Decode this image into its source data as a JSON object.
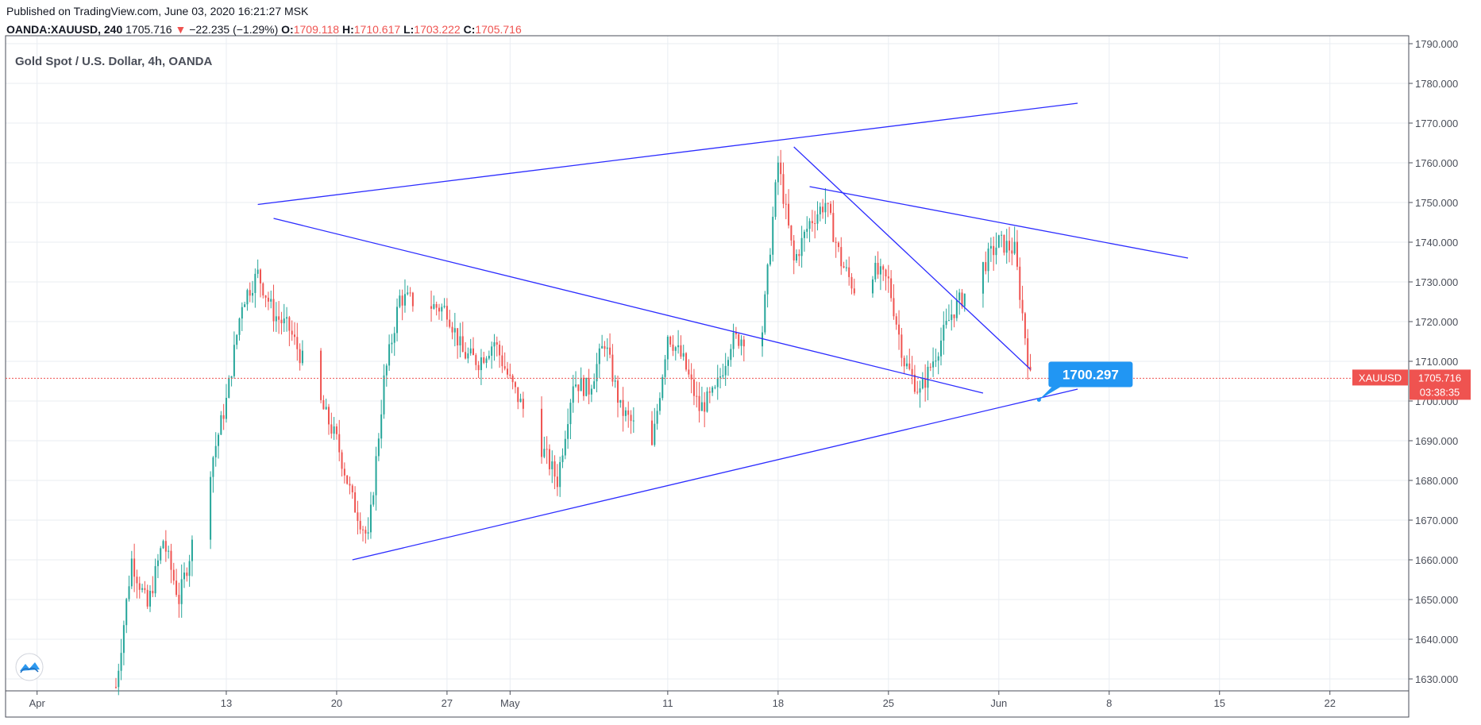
{
  "header": {
    "published": "Published on TradingView.com, June 03, 2020 16:21:27 MSK",
    "symbol": "OANDA:XAUUSD, 240",
    "last": "1705.716",
    "change_arrow": "▼",
    "change": "−22.235 (−1.29%)",
    "o_label": "O:",
    "o_value": "1709.118",
    "h_label": "H:",
    "h_value": "1710.617",
    "l_label": "L:",
    "l_value": "1703.222",
    "c_label": "C:",
    "c_value": "1705.716"
  },
  "colors": {
    "up": "#26a69a",
    "down": "#ef5350",
    "trendline": "#2c2cff",
    "callout": "#2196f3",
    "grid": "#e9edf2",
    "price_line": "#ef5350"
  },
  "logo_icon": "tradingview-cloud-icon",
  "chart_data": {
    "type": "candlestick",
    "title": "Gold Spot / U.S. Dollar, 4h, OANDA",
    "symbol_tag": "XAUUSD",
    "last_price": "1705.716",
    "last_price_value": 1705.716,
    "countdown": "03:38:35",
    "ylim": [
      1627,
      1792
    ],
    "y_ticks": [
      "1790.000",
      "1780.000",
      "1770.000",
      "1760.000",
      "1750.000",
      "1740.000",
      "1730.000",
      "1720.000",
      "1710.000",
      "1700.000",
      "1690.000",
      "1680.000",
      "1670.000",
      "1660.000",
      "1650.000",
      "1640.000",
      "1630.000"
    ],
    "x_ticks": [
      "Apr",
      "13",
      "20",
      "27",
      "May",
      "11",
      "18",
      "25",
      "Jun",
      "8",
      "15",
      "22"
    ],
    "xlim": [
      "2020-03-30",
      "2020-06-27"
    ],
    "x_tick_dates": [
      "2020-04-01",
      "2020-04-13",
      "2020-04-20",
      "2020-04-27",
      "2020-05-01",
      "2020-05-11",
      "2020-05-18",
      "2020-05-25",
      "2020-06-01",
      "2020-06-08",
      "2020-06-15",
      "2020-06-22"
    ],
    "price_path": [
      [
        "2020-04-06",
        1628
      ],
      [
        "2020-04-07",
        1660
      ],
      [
        "2020-04-08",
        1648
      ],
      [
        "2020-04-09",
        1665
      ],
      [
        "2020-04-10",
        1650
      ],
      [
        "2020-04-13",
        1700
      ],
      [
        "2020-04-14",
        1725
      ],
      [
        "2020-04-15",
        1732
      ],
      [
        "2020-04-16",
        1722
      ],
      [
        "2020-04-17",
        1718
      ],
      [
        "2020-04-20",
        1690
      ],
      [
        "2020-04-21",
        1675
      ],
      [
        "2020-04-22",
        1665
      ],
      [
        "2020-04-23",
        1705
      ],
      [
        "2020-04-24",
        1726
      ],
      [
        "2020-04-27",
        1723
      ],
      [
        "2020-04-28",
        1712
      ],
      [
        "2020-04-29",
        1710
      ],
      [
        "2020-04-30",
        1715
      ],
      [
        "2020-05-01",
        1705
      ],
      [
        "2020-05-04",
        1680
      ],
      [
        "2020-05-05",
        1705
      ],
      [
        "2020-05-06",
        1703
      ],
      [
        "2020-05-07",
        1715
      ],
      [
        "2020-05-08",
        1698
      ],
      [
        "2020-05-10",
        1688
      ],
      [
        "2020-05-11",
        1717
      ],
      [
        "2020-05-12",
        1710
      ],
      [
        "2020-05-13",
        1698
      ],
      [
        "2020-05-14",
        1702
      ],
      [
        "2020-05-15",
        1715
      ],
      [
        "2020-05-17",
        1718
      ],
      [
        "2020-05-18",
        1760
      ],
      [
        "2020-05-19",
        1735
      ],
      [
        "2020-05-20",
        1745
      ],
      [
        "2020-05-21",
        1750
      ],
      [
        "2020-05-22",
        1735
      ],
      [
        "2020-05-23",
        1727
      ],
      [
        "2020-05-24",
        1733
      ],
      [
        "2020-05-25",
        1730
      ],
      [
        "2020-05-26",
        1710
      ],
      [
        "2020-05-27",
        1702
      ],
      [
        "2020-05-28",
        1712
      ],
      [
        "2020-05-29",
        1722
      ],
      [
        "2020-05-30",
        1728
      ],
      [
        "2020-06-01",
        1740
      ],
      [
        "2020-06-02",
        1738
      ],
      [
        "2020-06-03",
        1705.7
      ]
    ],
    "trendlines": [
      {
        "name": "upper-channel",
        "from": [
          "2020-04-15",
          1749.5
        ],
        "to": [
          "2020-06-06",
          1775
        ]
      },
      {
        "name": "lower-channel",
        "from": [
          "2020-04-21",
          1660
        ],
        "to": [
          "2020-06-06",
          1703
        ]
      },
      {
        "name": "falling-resistance",
        "from": [
          "2020-04-16",
          1746
        ],
        "to": [
          "2020-05-31",
          1702
        ]
      },
      {
        "name": "upper-descending",
        "from": [
          "2020-05-20",
          1754
        ],
        "to": [
          "2020-06-13",
          1736
        ]
      },
      {
        "name": "steep-descending",
        "from": [
          "2020-05-19",
          1764
        ],
        "to": [
          "2020-06-03",
          1708
        ]
      }
    ],
    "callout": {
      "label": "1700.297",
      "date": "2020-06-04",
      "price": 1700.3
    }
  }
}
